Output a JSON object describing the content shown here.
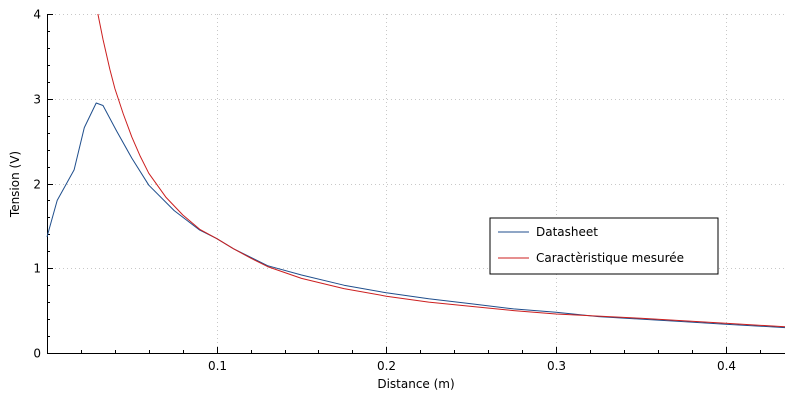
{
  "chart_data": {
    "type": "line",
    "title": "",
    "xlabel": "Distance (m)",
    "ylabel": "Tension (V)",
    "xlim": [
      0.0,
      0.435
    ],
    "ylim": [
      0,
      4
    ],
    "x_ticks": [
      0.1,
      0.2,
      0.3,
      0.4
    ],
    "x_tick_labels": [
      "0.1",
      "0.2",
      "0.3",
      "0.4"
    ],
    "y_ticks": [
      0,
      1,
      2,
      3,
      4
    ],
    "y_tick_labels": [
      "0",
      "1",
      "2",
      "3",
      "4"
    ],
    "grid": true,
    "legend_position": "center-right",
    "series": [
      {
        "name": "Datasheet",
        "color": "#1f4e8c",
        "x": [
          0.0,
          0.006,
          0.016,
          0.022,
          0.029,
          0.033,
          0.041,
          0.05,
          0.06,
          0.075,
          0.09,
          0.1,
          0.11,
          0.13,
          0.15,
          0.175,
          0.2,
          0.225,
          0.25,
          0.275,
          0.3,
          0.325,
          0.35,
          0.375,
          0.4,
          0.435
        ],
        "y": [
          1.37,
          1.8,
          2.16,
          2.66,
          2.95,
          2.92,
          2.62,
          2.3,
          1.98,
          1.68,
          1.45,
          1.35,
          1.23,
          1.03,
          0.92,
          0.8,
          0.71,
          0.64,
          0.58,
          0.52,
          0.48,
          0.43,
          0.4,
          0.37,
          0.34,
          0.3
        ]
      },
      {
        "name": "Caractèristique mesurée",
        "color": "#cc1f1f",
        "x": [
          0.03,
          0.033,
          0.037,
          0.04,
          0.045,
          0.05,
          0.055,
          0.06,
          0.07,
          0.08,
          0.09,
          0.1,
          0.11,
          0.12,
          0.13,
          0.15,
          0.175,
          0.2,
          0.225,
          0.25,
          0.275,
          0.3,
          0.35,
          0.4,
          0.435
        ],
        "y": [
          4.0,
          3.7,
          3.35,
          3.12,
          2.82,
          2.55,
          2.32,
          2.12,
          1.84,
          1.63,
          1.46,
          1.35,
          1.23,
          1.12,
          1.02,
          0.88,
          0.76,
          0.67,
          0.6,
          0.55,
          0.5,
          0.46,
          0.41,
          0.35,
          0.31
        ]
      }
    ]
  }
}
